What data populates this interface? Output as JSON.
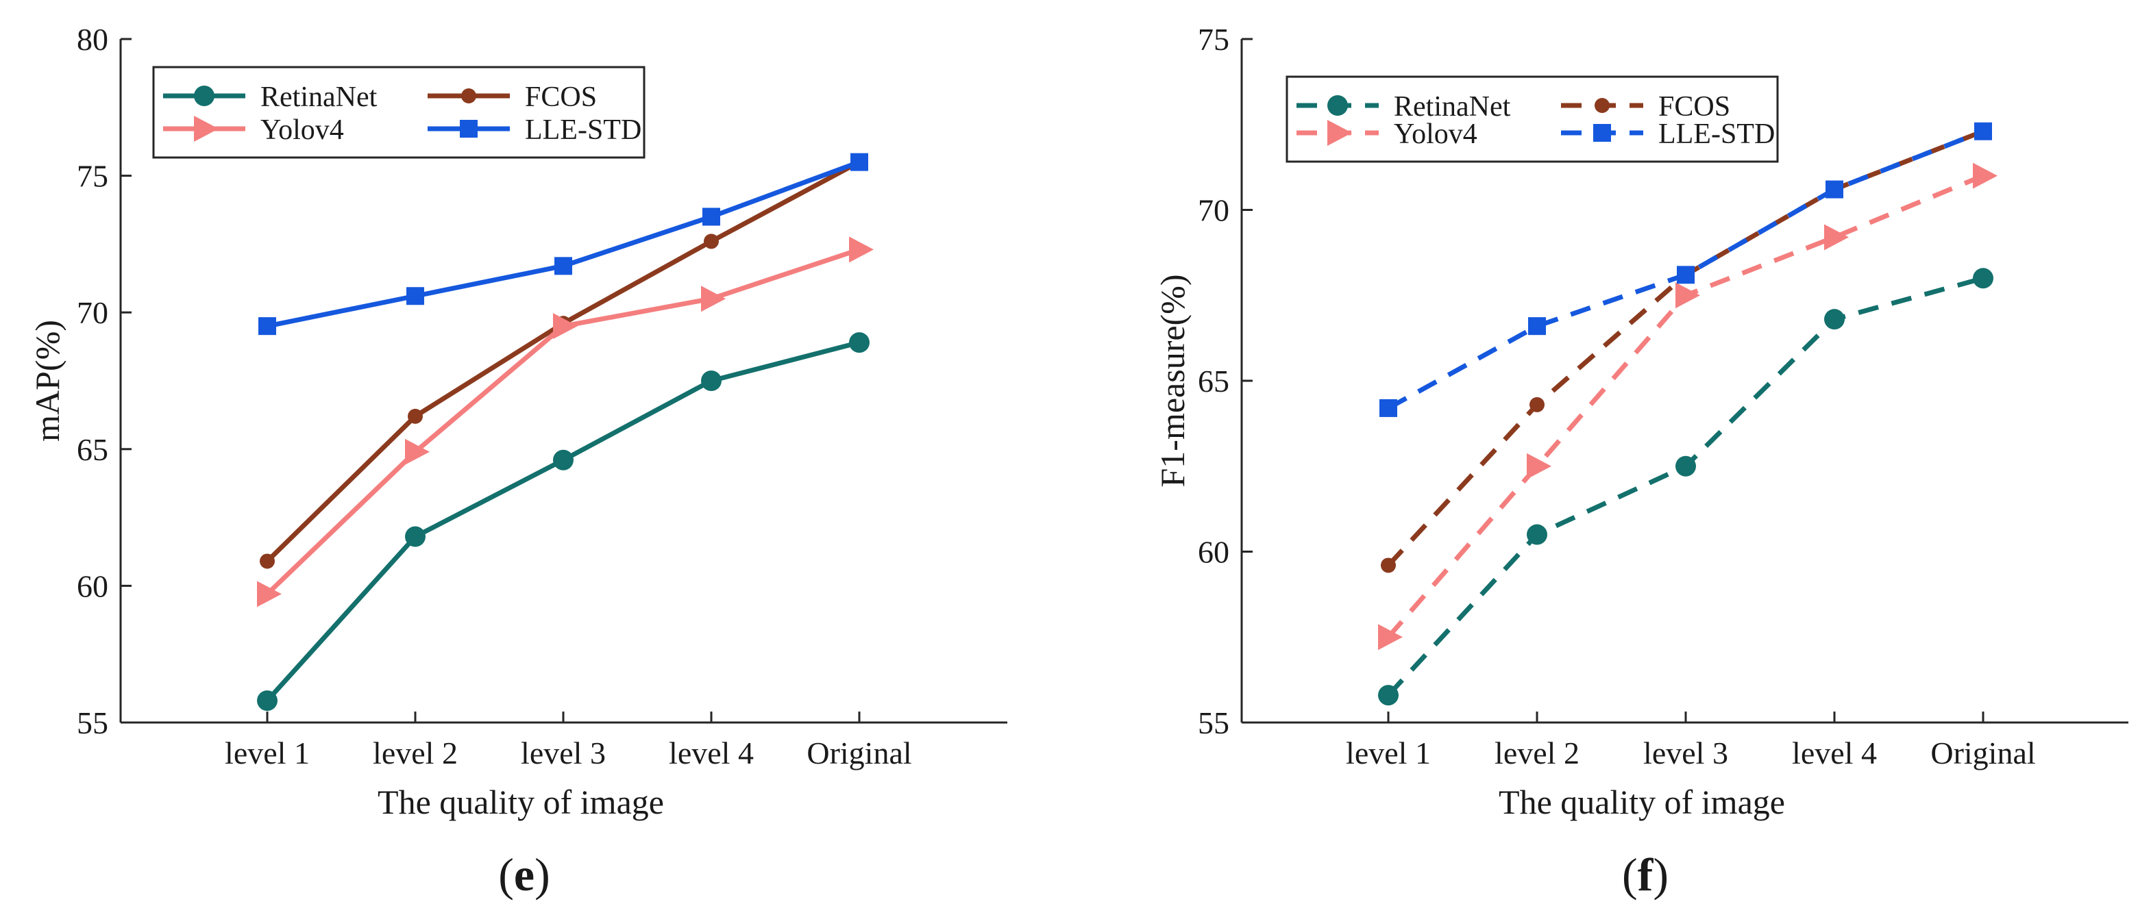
{
  "chart_data": [
    {
      "type": "line",
      "panel_label": "e",
      "line_style": "solid",
      "categories": [
        "level 1",
        "level 2",
        "level 3",
        "level 4",
        "Original"
      ],
      "xlabel": "The quality of image",
      "ylabel": "mAP(%)",
      "ylim": [
        55,
        80
      ],
      "yticks": [
        55,
        60,
        65,
        70,
        75,
        80
      ],
      "legend_position": "top-left",
      "series": [
        {
          "name": "RetinaNet",
          "color": "#13706C",
          "marker": "circle",
          "values": [
            55.8,
            61.8,
            64.6,
            67.5,
            68.9
          ]
        },
        {
          "name": "FCOS",
          "color": "#8B3A1E",
          "marker": "circle-small",
          "values": [
            60.9,
            66.2,
            69.6,
            72.6,
            75.5
          ]
        },
        {
          "name": "Yolov4",
          "color": "#F47E7E",
          "marker": "triangle-right",
          "values": [
            59.7,
            64.9,
            69.5,
            70.5,
            72.3
          ]
        },
        {
          "name": "LLE-STD",
          "color": "#1558DE",
          "marker": "square",
          "values": [
            69.5,
            70.6,
            71.7,
            73.5,
            75.5
          ]
        }
      ]
    },
    {
      "type": "line",
      "panel_label": "f",
      "line_style": "dashed",
      "categories": [
        "level 1",
        "level 2",
        "level 3",
        "level 4",
        "Original"
      ],
      "xlabel": "The quality of image",
      "ylabel": "F1-measure(%)",
      "ylim": [
        55,
        75
      ],
      "yticks": [
        55,
        60,
        65,
        70,
        75
      ],
      "legend_position": "top-left",
      "series": [
        {
          "name": "RetinaNet",
          "color": "#13706C",
          "marker": "circle",
          "values": [
            55.8,
            60.5,
            62.5,
            66.8,
            68.0
          ]
        },
        {
          "name": "FCOS",
          "color": "#8B3A1E",
          "marker": "circle-small",
          "values": [
            59.6,
            64.3,
            68.1,
            70.6,
            72.3
          ]
        },
        {
          "name": "Yolov4",
          "color": "#F47E7E",
          "marker": "triangle-right",
          "values": [
            57.5,
            62.5,
            67.5,
            69.2,
            71.0
          ]
        },
        {
          "name": "LLE-STD",
          "color": "#1558DE",
          "marker": "square",
          "values": [
            64.2,
            66.6,
            68.1,
            70.6,
            72.3
          ]
        }
      ]
    }
  ]
}
